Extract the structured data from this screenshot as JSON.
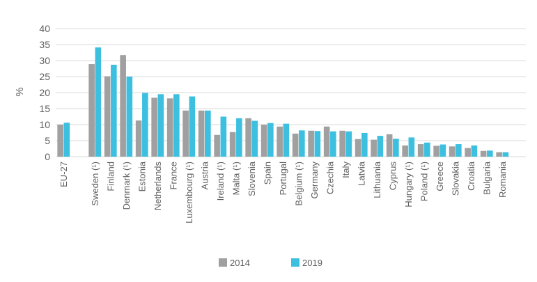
{
  "chart_data": {
    "type": "bar",
    "ylabel": "%",
    "ylim": [
      0,
      40
    ],
    "yticks": [
      "0",
      "5",
      "10",
      "15",
      "20",
      "25",
      "30",
      "35",
      "40"
    ],
    "ytick_values": [
      0,
      5,
      10,
      15,
      20,
      25,
      30,
      35,
      40
    ],
    "grid": true,
    "legend_position": "bottom",
    "categories": [
      "EU-27",
      "",
      "Sweden (¹)",
      "Finland",
      "Denmark (¹)",
      "Estonia",
      "Netherlands",
      "France",
      "Luxembourg (¹)",
      "Austria",
      "Ireland (¹)",
      "Malta (¹)",
      "Slovenia",
      "Spain",
      "Portugal",
      "Belgium (¹)",
      "Germany",
      "Czechia",
      "Italy",
      "Latvia",
      "Lithuania",
      "Cyprus",
      "Hungary (¹)",
      "Poland (¹)",
      "Greece",
      "Slovakia",
      "Croatia",
      "Bulgaria",
      "Romania",
      ""
    ],
    "series": [
      {
        "name": "2014",
        "color": "#a0a0a0",
        "values": [
          10.0,
          null,
          28.9,
          25.1,
          31.7,
          11.3,
          18.4,
          18.2,
          14.4,
          14.4,
          6.8,
          7.7,
          12.0,
          10.0,
          9.4,
          7.2,
          8.1,
          9.4,
          8.1,
          5.5,
          5.3,
          7.0,
          3.5,
          3.9,
          3.4,
          3.2,
          2.7,
          1.8,
          1.4,
          null
        ]
      },
      {
        "name": "2019",
        "color": "#3dc0e0",
        "values": [
          10.6,
          null,
          34.1,
          28.7,
          25.0,
          19.9,
          19.5,
          19.5,
          18.8,
          14.4,
          12.5,
          12.0,
          11.2,
          10.5,
          10.3,
          8.2,
          8.0,
          7.9,
          7.9,
          7.4,
          6.5,
          5.6,
          6.0,
          4.4,
          3.8,
          3.9,
          3.5,
          1.9,
          1.4,
          null
        ]
      }
    ]
  }
}
